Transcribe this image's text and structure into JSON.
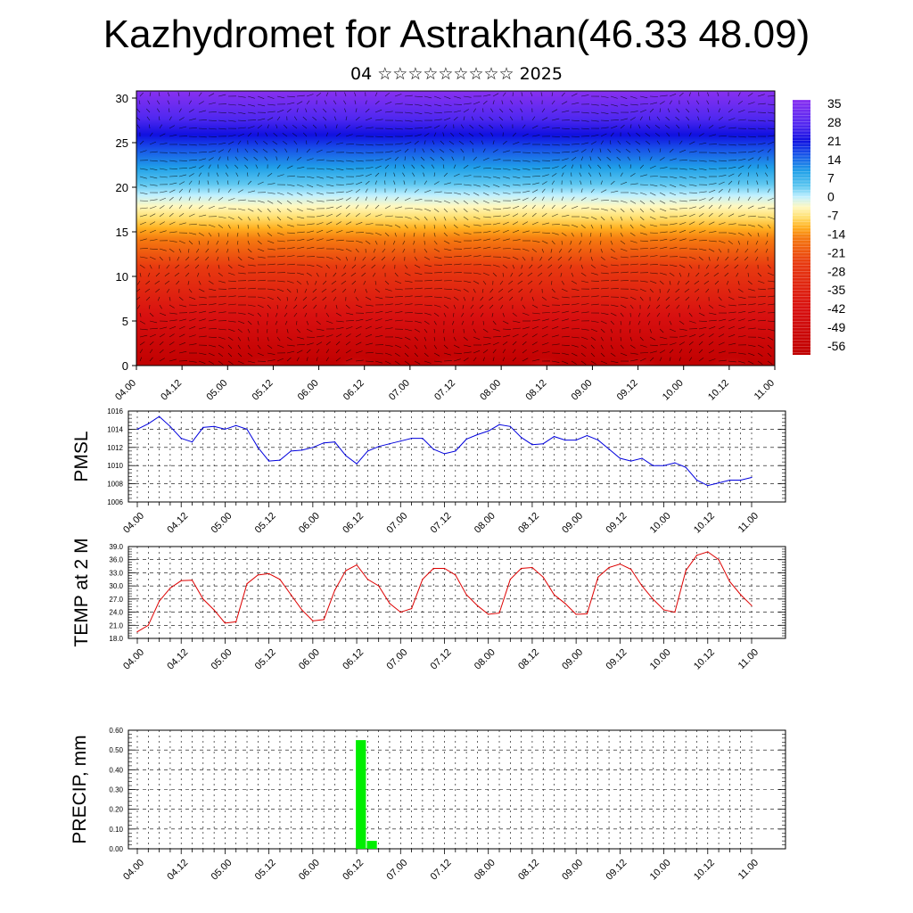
{
  "header": {
    "title": "Kazhydromet for Astrakhan(46.33 48.09)",
    "subtitle": "04 ☆☆☆☆☆☆☆☆☆ 2025"
  },
  "time_labels": [
    "04.00",
    "04.12",
    "05.00",
    "05.12",
    "06.00",
    "06.12",
    "07.00",
    "07.12",
    "08.00",
    "08.12",
    "09.00",
    "09.12",
    "10.00",
    "10.12",
    "11.00"
  ],
  "colors": {
    "pmsl_line": "#0000dd",
    "temp_line": "#dd0000",
    "precip_bar": "#00ee00"
  },
  "chart_data": [
    {
      "type": "heatmap",
      "name": "vertical-section",
      "x": [
        "04.00",
        "04.12",
        "05.00",
        "05.12",
        "06.00",
        "06.12",
        "07.00",
        "07.12",
        "08.00",
        "08.12",
        "09.00",
        "09.12",
        "10.00",
        "10.12",
        "11.00"
      ],
      "y_ticks": [
        0,
        5,
        10,
        15,
        20,
        25,
        30
      ],
      "ylim": [
        0,
        30.8
      ],
      "colorbar_labels": [
        "35",
        "28",
        "21",
        "14",
        "7",
        "0",
        "-7",
        "-14",
        "-21",
        "-28",
        "-35",
        "-42",
        "-49",
        "-56"
      ],
      "colorbar_range": [
        -60,
        38
      ]
    },
    {
      "type": "line",
      "name": "pmsl",
      "ylabel": "PMSL",
      "ylim": [
        1006,
        1016
      ],
      "y_ticks": [
        "1016",
        "1014",
        "1012",
        "1010",
        "1008",
        "1006"
      ],
      "x_step_hours": 3,
      "values": [
        1014.0,
        1014.6,
        1015.4,
        1014.3,
        1013.0,
        1012.6,
        1014.2,
        1014.3,
        1014.0,
        1014.4,
        1014.0,
        1012.0,
        1010.5,
        1010.6,
        1011.6,
        1011.7,
        1012.0,
        1012.5,
        1012.6,
        1011.1,
        1010.2,
        1011.6,
        1012.1,
        1012.4,
        1012.7,
        1013.0,
        1013.0,
        1011.8,
        1011.3,
        1011.6,
        1012.9,
        1013.4,
        1013.8,
        1014.5,
        1014.3,
        1013.1,
        1012.3,
        1012.4,
        1013.2,
        1012.8,
        1012.8,
        1013.3,
        1012.8,
        1011.8,
        1010.8,
        1010.5,
        1010.8,
        1010.0,
        1010.0,
        1010.3,
        1009.8,
        1008.4,
        1007.8,
        1008.1,
        1008.4,
        1008.4,
        1008.7
      ]
    },
    {
      "type": "line",
      "name": "temp-2m",
      "ylabel": "TEMP at 2 M",
      "ylim": [
        18.0,
        39.0
      ],
      "y_ticks": [
        "39.0",
        "36.0",
        "33.0",
        "30.0",
        "27.0",
        "24.0",
        "21.0",
        "18.0"
      ],
      "x_step_hours": 3,
      "values": [
        19.5,
        21.0,
        26.5,
        29.5,
        31.2,
        31.3,
        27.0,
        24.5,
        21.5,
        21.8,
        30.5,
        32.5,
        32.8,
        31.5,
        28.0,
        24.5,
        22.0,
        22.3,
        29.0,
        33.5,
        34.8,
        31.5,
        30.0,
        26.0,
        24.0,
        24.8,
        31.5,
        34.0,
        34.0,
        32.5,
        28.0,
        25.5,
        23.5,
        23.8,
        31.5,
        34.0,
        34.2,
        32.0,
        28.0,
        26.0,
        23.5,
        23.6,
        32.0,
        34.2,
        35.0,
        33.8,
        30.0,
        27.0,
        24.5,
        24.0,
        33.5,
        37.0,
        37.8,
        36.0,
        31.0,
        28.0,
        25.5
      ]
    },
    {
      "type": "bar",
      "name": "precip",
      "ylabel": "PRECIP, mm",
      "ylim": [
        0.0,
        0.6
      ],
      "y_ticks": [
        "0.60",
        "0.50",
        "0.40",
        "0.30",
        "0.20",
        "0.10",
        "0.00"
      ],
      "x_step_hours": 3,
      "values": [
        0,
        0,
        0,
        0,
        0,
        0,
        0,
        0,
        0,
        0,
        0,
        0,
        0,
        0,
        0,
        0,
        0,
        0,
        0,
        0,
        0.55,
        0.04,
        0,
        0,
        0,
        0,
        0,
        0,
        0,
        0,
        0,
        0,
        0,
        0,
        0,
        0,
        0,
        0,
        0,
        0,
        0,
        0,
        0,
        0,
        0,
        0,
        0,
        0,
        0,
        0,
        0,
        0,
        0,
        0,
        0,
        0
      ]
    }
  ]
}
